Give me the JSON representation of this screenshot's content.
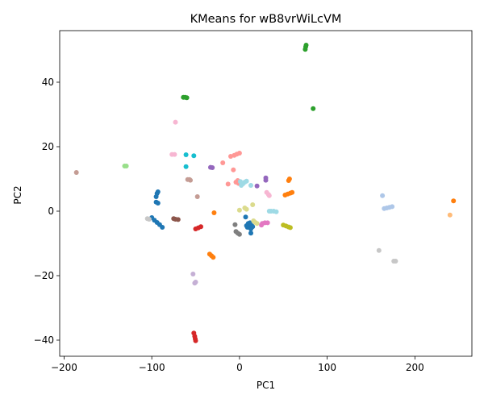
{
  "chart_data": {
    "type": "scatter",
    "title": "KMeans for wB8vrWiLcVM",
    "xlabel": "PC1",
    "ylabel": "PC2",
    "xlim": [
      -205,
      265
    ],
    "ylim": [
      -45,
      56
    ],
    "xticks": [
      -200,
      -100,
      0,
      100,
      200
    ],
    "yticks": [
      -40,
      -20,
      0,
      20,
      40
    ],
    "grid": false,
    "legend": "none",
    "series": [
      {
        "color": "#1f77b4",
        "points": [
          [
            -95,
            4.5
          ],
          [
            -94,
            5.5
          ],
          [
            -93,
            6
          ],
          [
            -95,
            2.8
          ],
          [
            -93,
            2.5
          ],
          [
            -100,
            -2
          ],
          [
            -97,
            -2.8
          ],
          [
            -94,
            -3.5
          ],
          [
            -91,
            -4.2
          ],
          [
            -88,
            -5
          ],
          [
            10,
            -3.8
          ],
          [
            12,
            -4.2
          ],
          [
            14,
            -4.5
          ],
          [
            11,
            -5
          ],
          [
            13,
            -5.5
          ],
          [
            9,
            -5
          ],
          [
            15,
            -4.8
          ],
          [
            12,
            -3.6
          ],
          [
            8,
            -4.5
          ],
          [
            13,
            -6.8
          ],
          [
            7,
            -1.8
          ]
        ]
      },
      {
        "color": "#aec7e8",
        "points": [
          [
            165,
            0.8
          ],
          [
            168,
            1
          ],
          [
            171,
            1.2
          ],
          [
            174,
            1.4
          ],
          [
            163,
            4.8
          ]
        ]
      },
      {
        "color": "#ff7f0e",
        "points": [
          [
            -29,
            -0.5
          ],
          [
            244,
            3.2
          ]
        ]
      },
      {
        "color": "#ffbb78",
        "points": [
          [
            240,
            -1.2
          ]
        ]
      },
      {
        "color": "#2ca02c",
        "points": [
          [
            75,
            50.2
          ],
          [
            75.5,
            51
          ],
          [
            76,
            51.5
          ],
          [
            -64,
            35.3
          ],
          [
            -62,
            35.3
          ],
          [
            -60,
            35.2
          ],
          [
            84,
            31.8
          ]
        ]
      },
      {
        "color": "#98df8a",
        "points": [
          [
            -131,
            14
          ],
          [
            -129,
            14
          ]
        ]
      },
      {
        "color": "#d62728",
        "points": [
          [
            -50,
            -5.5
          ],
          [
            -47,
            -5.2
          ],
          [
            -44,
            -4.8
          ],
          [
            -52,
            -37.8
          ],
          [
            -51,
            -38.8
          ],
          [
            -50.5,
            -39.6
          ],
          [
            -50,
            -40.2
          ]
        ]
      },
      {
        "color": "#ff9896",
        "points": [
          [
            -10,
            17
          ],
          [
            -6,
            17.3
          ],
          [
            -3,
            17.7
          ],
          [
            0,
            18
          ],
          [
            -19,
            15
          ],
          [
            -7,
            12.8
          ],
          [
            -2,
            9.5
          ],
          [
            -1,
            8.6
          ],
          [
            -13,
            8.4
          ],
          [
            -4,
            9
          ]
        ]
      },
      {
        "color": "#9467bd",
        "points": [
          [
            -33,
            13.6
          ],
          [
            -31,
            13.5
          ],
          [
            30,
            10.3
          ],
          [
            30,
            9.6
          ],
          [
            20,
            7.8
          ]
        ]
      },
      {
        "color": "#c5b0d5",
        "points": [
          [
            -53,
            -19.5
          ],
          [
            -51,
            -22.3
          ],
          [
            -50,
            -22
          ]
        ]
      },
      {
        "color": "#8c564b",
        "points": [
          [
            -75,
            -2.3
          ],
          [
            -73,
            -2.5
          ],
          [
            -70,
            -2.6
          ]
        ]
      },
      {
        "color": "#c49c94",
        "points": [
          [
            -59,
            9.8
          ],
          [
            -57,
            9.8
          ],
          [
            -56,
            9.6
          ],
          [
            -48,
            4.5
          ],
          [
            -186,
            12
          ]
        ]
      },
      {
        "color": "#e377c2",
        "points": [
          [
            26,
            -3.8
          ],
          [
            29,
            -3.6
          ],
          [
            32,
            -3.6
          ],
          [
            25,
            -4.3
          ]
        ]
      },
      {
        "color": "#f7b6d2",
        "points": [
          [
            -77,
            17.6
          ],
          [
            -74,
            17.6
          ],
          [
            -73,
            27.6
          ],
          [
            31,
            5.8
          ],
          [
            33,
            5.2
          ],
          [
            34,
            4.8
          ]
        ]
      },
      {
        "color": "#7f7f7f",
        "points": [
          [
            -5,
            -4.2
          ],
          [
            -4,
            -6.3
          ],
          [
            -2,
            -6.8
          ],
          [
            0,
            -7.2
          ]
        ]
      },
      {
        "color": "#c7c7c7",
        "points": [
          [
            -105,
            -2.3
          ],
          [
            -103,
            -2.5
          ],
          [
            159,
            -12.2
          ],
          [
            176,
            -15.5
          ],
          [
            178,
            -15.5
          ]
        ]
      },
      {
        "color": "#bcbd22",
        "points": [
          [
            50,
            -4.3
          ],
          [
            53,
            -4.6
          ],
          [
            56,
            -4.9
          ],
          [
            58,
            -5.1
          ]
        ]
      },
      {
        "color": "#dbdb8d",
        "points": [
          [
            16,
            -3
          ],
          [
            18,
            -3.5
          ],
          [
            20,
            -3.8
          ],
          [
            15,
            2
          ],
          [
            6,
            1
          ],
          [
            8,
            0.6
          ],
          [
            0,
            0.3
          ]
        ]
      },
      {
        "color": "#17becf",
        "points": [
          [
            -61,
            17.5
          ],
          [
            -52,
            17.2
          ],
          [
            -61,
            13.8
          ]
        ]
      },
      {
        "color": "#9edae5",
        "points": [
          [
            2,
            8
          ],
          [
            4,
            8.5
          ],
          [
            6,
            9
          ],
          [
            8,
            9.3
          ],
          [
            1,
            9.2
          ],
          [
            13,
            8
          ],
          [
            36,
            0
          ],
          [
            39,
            0
          ],
          [
            42,
            -0.2
          ],
          [
            34,
            0
          ]
        ]
      },
      {
        "color": "#ff7f0e",
        "points": [
          [
            52,
            5
          ],
          [
            55,
            5.3
          ],
          [
            58,
            5.6
          ],
          [
            60,
            5.8
          ],
          [
            56,
            9.5
          ],
          [
            57,
            10
          ]
        ]
      },
      {
        "color": "#ff7f0e",
        "points": [
          [
            -34,
            -13.3
          ],
          [
            -32,
            -13.8
          ],
          [
            -30,
            -14.3
          ]
        ]
      }
    ]
  }
}
